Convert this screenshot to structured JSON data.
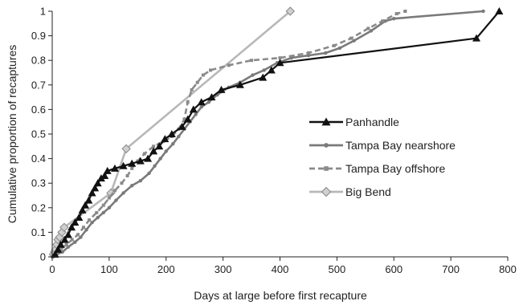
{
  "chart_data": {
    "type": "line",
    "title": "",
    "xlabel": "Days at large before first recapture",
    "ylabel": "Cumulative proportion of recaptures",
    "xlim": [
      0,
      800
    ],
    "ylim": [
      0,
      1
    ],
    "x_ticks": [
      "0",
      "100",
      "200",
      "300",
      "400",
      "500",
      "600",
      "700",
      "800"
    ],
    "y_ticks": [
      "0",
      "0.1",
      "0.2",
      "0.3",
      "0.4",
      "0.5",
      "0.6",
      "0.7",
      "0.8",
      "0.9",
      "1"
    ],
    "grid": false,
    "legend_position": "right",
    "series": [
      {
        "name": "Panhandle",
        "color": "#111111",
        "dash": "solid",
        "marker": "triangle",
        "points": [
          [
            5,
            0.01
          ],
          [
            10,
            0.03
          ],
          [
            15,
            0.05
          ],
          [
            22,
            0.07
          ],
          [
            28,
            0.09
          ],
          [
            34,
            0.12
          ],
          [
            40,
            0.14
          ],
          [
            47,
            0.16
          ],
          [
            53,
            0.19
          ],
          [
            58,
            0.21
          ],
          [
            64,
            0.23
          ],
          [
            70,
            0.26
          ],
          [
            75,
            0.28
          ],
          [
            80,
            0.3
          ],
          [
            86,
            0.32
          ],
          [
            92,
            0.33
          ],
          [
            97,
            0.35
          ],
          [
            110,
            0.36
          ],
          [
            125,
            0.37
          ],
          [
            140,
            0.38
          ],
          [
            155,
            0.39
          ],
          [
            168,
            0.4
          ],
          [
            178,
            0.43
          ],
          [
            188,
            0.45
          ],
          [
            198,
            0.48
          ],
          [
            210,
            0.5
          ],
          [
            228,
            0.53
          ],
          [
            238,
            0.56
          ],
          [
            248,
            0.6
          ],
          [
            262,
            0.63
          ],
          [
            280,
            0.65
          ],
          [
            297,
            0.68
          ],
          [
            330,
            0.7
          ],
          [
            370,
            0.73
          ],
          [
            385,
            0.76
          ],
          [
            400,
            0.79
          ],
          [
            745,
            0.89
          ],
          [
            785,
            1.0
          ]
        ]
      },
      {
        "name": "Tampa Bay nearshore",
        "color": "#7a7a7a",
        "dash": "solid",
        "marker": "dot",
        "points": [
          [
            0,
            0
          ],
          [
            8,
            0.01
          ],
          [
            18,
            0.02
          ],
          [
            28,
            0.04
          ],
          [
            40,
            0.06
          ],
          [
            50,
            0.08
          ],
          [
            60,
            0.11
          ],
          [
            70,
            0.14
          ],
          [
            80,
            0.16
          ],
          [
            90,
            0.18
          ],
          [
            100,
            0.2
          ],
          [
            112,
            0.23
          ],
          [
            125,
            0.26
          ],
          [
            140,
            0.29
          ],
          [
            155,
            0.31
          ],
          [
            170,
            0.34
          ],
          [
            180,
            0.37
          ],
          [
            190,
            0.4
          ],
          [
            200,
            0.43
          ],
          [
            212,
            0.46
          ],
          [
            222,
            0.49
          ],
          [
            232,
            0.52
          ],
          [
            242,
            0.55
          ],
          [
            252,
            0.58
          ],
          [
            262,
            0.61
          ],
          [
            275,
            0.63
          ],
          [
            290,
            0.66
          ],
          [
            310,
            0.69
          ],
          [
            330,
            0.71
          ],
          [
            352,
            0.74
          ],
          [
            372,
            0.76
          ],
          [
            395,
            0.79
          ],
          [
            420,
            0.81
          ],
          [
            450,
            0.82
          ],
          [
            480,
            0.83
          ],
          [
            505,
            0.85
          ],
          [
            530,
            0.88
          ],
          [
            560,
            0.92
          ],
          [
            585,
            0.96
          ],
          [
            600,
            0.97
          ],
          [
            757,
            1.0
          ]
        ]
      },
      {
        "name": "Tampa Bay offshore",
        "color": "#8a8a8a",
        "dash": "dashed",
        "marker": "square",
        "points": [
          [
            5,
            0.01
          ],
          [
            15,
            0.03
          ],
          [
            25,
            0.05
          ],
          [
            35,
            0.07
          ],
          [
            45,
            0.09
          ],
          [
            55,
            0.12
          ],
          [
            65,
            0.15
          ],
          [
            78,
            0.18
          ],
          [
            90,
            0.21
          ],
          [
            100,
            0.24
          ],
          [
            110,
            0.27
          ],
          [
            122,
            0.3
          ],
          [
            132,
            0.33
          ],
          [
            140,
            0.36
          ],
          [
            150,
            0.39
          ],
          [
            162,
            0.42
          ],
          [
            178,
            0.45
          ],
          [
            195,
            0.47
          ],
          [
            210,
            0.49
          ],
          [
            222,
            0.52
          ],
          [
            232,
            0.56
          ],
          [
            238,
            0.63
          ],
          [
            245,
            0.68
          ],
          [
            255,
            0.71
          ],
          [
            265,
            0.74
          ],
          [
            278,
            0.76
          ],
          [
            310,
            0.78
          ],
          [
            350,
            0.8
          ],
          [
            400,
            0.81
          ],
          [
            450,
            0.83
          ],
          [
            495,
            0.86
          ],
          [
            525,
            0.89
          ],
          [
            555,
            0.93
          ],
          [
            580,
            0.96
          ],
          [
            605,
            0.99
          ],
          [
            620,
            1.0
          ]
        ]
      },
      {
        "name": "Big Bend",
        "color": "#b8b8b8",
        "dash": "solid",
        "marker": "diamond",
        "points": [
          [
            2,
            0.01
          ],
          [
            4,
            0.02
          ],
          [
            6,
            0.03
          ],
          [
            8,
            0.05
          ],
          [
            10,
            0.07
          ],
          [
            13,
            0.08
          ],
          [
            17,
            0.1
          ],
          [
            21,
            0.12
          ],
          [
            103,
            0.26
          ],
          [
            130,
            0.44
          ],
          [
            418,
            1.0
          ]
        ]
      }
    ]
  }
}
